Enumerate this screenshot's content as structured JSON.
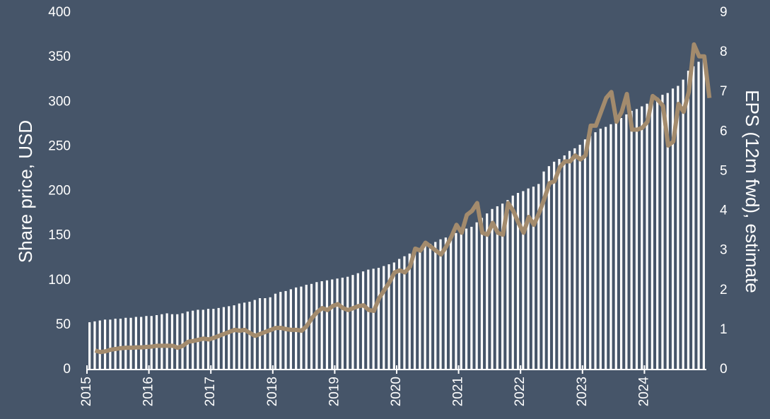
{
  "chart_data": {
    "type": "bar-line",
    "y_label": "Share price, USD",
    "y2_label": "EPS (12m fwd), estimate",
    "categories": [
      "2015",
      null,
      null,
      null,
      null,
      null,
      null,
      null,
      null,
      null,
      null,
      null,
      "2016",
      null,
      null,
      null,
      null,
      null,
      null,
      null,
      null,
      null,
      null,
      null,
      "2017",
      null,
      null,
      null,
      null,
      null,
      null,
      null,
      null,
      null,
      null,
      null,
      "2018",
      null,
      null,
      null,
      null,
      null,
      null,
      null,
      null,
      null,
      null,
      null,
      "2019",
      null,
      null,
      null,
      null,
      null,
      null,
      null,
      null,
      null,
      null,
      null,
      "2020",
      null,
      null,
      null,
      null,
      null,
      null,
      null,
      null,
      null,
      null,
      null,
      "2021",
      null,
      null,
      null,
      null,
      null,
      null,
      null,
      null,
      null,
      null,
      null,
      "2022",
      null,
      null,
      null,
      null,
      null,
      null,
      null,
      null,
      null,
      null,
      null,
      "2023",
      null,
      null,
      null,
      null,
      null,
      null,
      null,
      null,
      null,
      null,
      null,
      "2024",
      null,
      null,
      null,
      null,
      null,
      null,
      null,
      null,
      null,
      null,
      null
    ],
    "series": [
      {
        "name": "Share price",
        "type": "bar",
        "color": "#ffffff",
        "values": [
          53,
          54,
          55,
          56,
          56,
          57,
          57,
          58,
          58,
          59,
          59,
          60,
          60,
          61,
          62,
          63,
          62,
          62,
          63,
          65,
          66,
          67,
          67,
          68,
          68,
          69,
          70,
          71,
          72,
          74,
          75,
          76,
          78,
          80,
          80,
          81,
          85,
          87,
          88,
          90,
          92,
          93,
          95,
          96,
          98,
          99,
          100,
          101,
          102,
          103,
          104,
          106,
          108,
          110,
          112,
          113,
          114,
          116,
          118,
          120,
          124,
          127,
          130,
          133,
          136,
          139,
          141,
          143,
          146,
          148,
          150,
          153,
          156,
          158,
          160,
          165,
          170,
          175,
          180,
          183,
          186,
          190,
          195,
          198,
          200,
          203,
          205,
          208,
          222,
          228,
          233,
          236,
          240,
          245,
          248,
          252,
          258,
          262,
          266,
          270,
          272,
          275,
          278,
          282,
          286,
          290,
          292,
          295,
          298,
          302,
          305,
          308,
          310,
          315,
          318,
          325,
          335,
          340,
          345,
          352
        ]
      },
      {
        "name": "EPS",
        "type": "line",
        "axis": "y2",
        "color": "#a38b6d",
        "values": [
          0.48,
          0.44,
          0.46,
          0.5,
          0.52,
          0.54,
          0.55,
          0.55,
          0.56,
          0.56,
          0.57,
          0.58,
          0.6,
          0.6,
          0.6,
          0.6,
          0.55,
          0.6,
          0.7,
          0.72,
          0.75,
          0.78,
          0.76,
          0.8,
          0.85,
          0.9,
          0.95,
          1.0,
          0.98,
          1.0,
          0.92,
          0.85,
          0.9,
          0.95,
          1.0,
          1.05,
          1.05,
          1.02,
          1.0,
          1.0,
          0.98,
          1.1,
          1.3,
          1.45,
          1.55,
          1.5,
          1.6,
          1.65,
          1.55,
          1.5,
          1.55,
          1.6,
          1.62,
          1.5,
          1.48,
          1.8,
          2.0,
          2.2,
          2.45,
          2.5,
          2.45,
          2.6,
          3.05,
          3.0,
          3.2,
          3.1,
          3.0,
          2.9,
          3.1,
          3.35,
          3.65,
          3.45,
          3.9,
          4.0,
          4.2,
          3.45,
          3.4,
          3.7,
          3.45,
          3.4,
          4.2,
          4.0,
          3.7,
          3.45,
          3.85,
          3.65,
          3.95,
          4.3,
          4.7,
          4.75,
          5.1,
          5.25,
          5.25,
          5.4,
          5.3,
          5.4,
          6.15,
          6.15,
          6.5,
          6.85,
          7.0,
          6.25,
          6.5,
          6.95,
          6.05,
          6.05,
          6.1,
          6.25,
          6.9,
          6.8,
          6.65,
          5.65,
          5.75,
          6.7,
          6.5,
          7.0,
          8.2,
          7.9,
          7.9,
          6.85
        ]
      }
    ],
    "ylim": [
      0,
      400
    ],
    "yticks": [
      0,
      50,
      100,
      150,
      200,
      250,
      300,
      350,
      400
    ],
    "y2lim": [
      0,
      9
    ],
    "y2ticks": [
      0,
      1,
      2,
      3,
      4,
      5,
      6,
      7,
      8,
      9
    ]
  }
}
